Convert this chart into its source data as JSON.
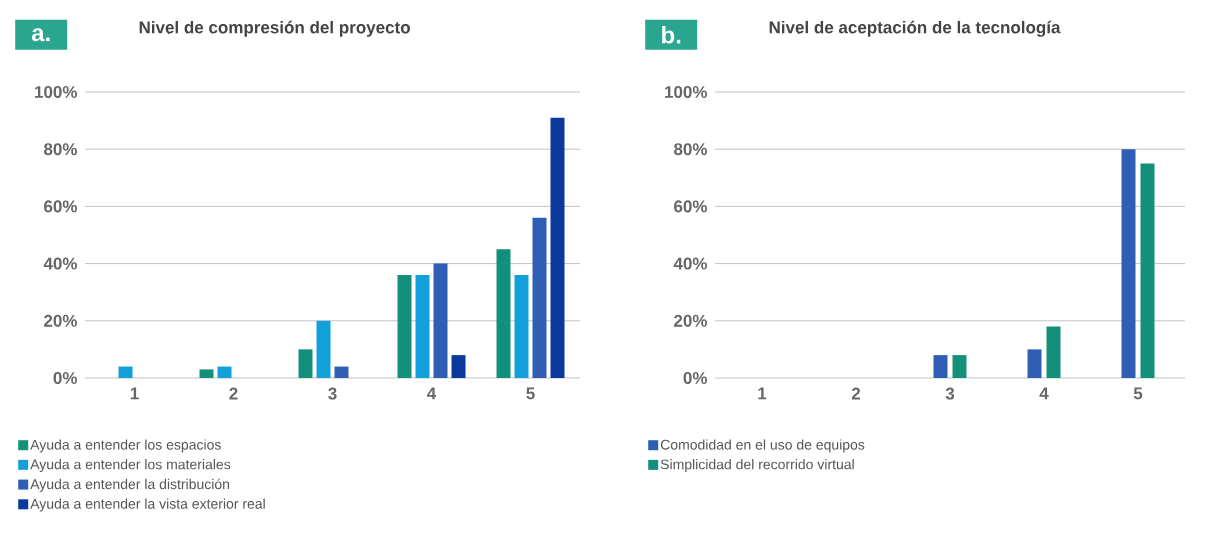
{
  "chart_data": [
    {
      "type": "bar",
      "title": "Nivel de compresión del proyecto",
      "annotations": [
        "a."
      ],
      "categories": [
        "1",
        "2",
        "3",
        "4",
        "5"
      ],
      "series": [
        {
          "name": "Ayuda a entender los espacios",
          "color": "#12907a",
          "values": [
            0,
            3,
            10,
            36,
            45
          ]
        },
        {
          "name": "Ayuda a entender los materiales",
          "color": "#139fd9",
          "values": [
            4,
            4,
            20,
            36,
            36
          ]
        },
        {
          "name": "Ayuda a entender la distribución",
          "color": "#2f5fb5",
          "values": [
            0,
            0,
            4,
            40,
            56
          ]
        },
        {
          "name": "Ayuda a entender la vista exterior real",
          "color": "#0b3a9c",
          "values": [
            0,
            0,
            0,
            8,
            91
          ]
        }
      ],
      "ylim": [
        0,
        100
      ],
      "yticks": [
        {
          "value": 0,
          "label": "0%"
        },
        {
          "value": 20,
          "label": "20%"
        },
        {
          "value": 40,
          "label": "40%"
        },
        {
          "value": 60,
          "label": "60%"
        },
        {
          "value": 80,
          "label": "80%"
        },
        {
          "value": 100,
          "label": "100%"
        }
      ],
      "grid": "y",
      "legend": "bottom"
    },
    {
      "type": "bar",
      "title": "Nivel de aceptación de la tecnología",
      "annotations": [
        "b."
      ],
      "categories": [
        "1",
        "2",
        "3",
        "4",
        "5"
      ],
      "series": [
        {
          "name": "Comodidad en el uso de equipos",
          "color": "#2f5fb5",
          "values": [
            0,
            0,
            8,
            10,
            80
          ]
        },
        {
          "name": "Simplicidad del recorrido virtual",
          "color": "#12907a",
          "values": [
            0,
            0,
            8,
            18,
            75
          ]
        }
      ],
      "ylim": [
        0,
        100
      ],
      "yticks": [
        {
          "value": 0,
          "label": "0%"
        },
        {
          "value": 20,
          "label": "20%"
        },
        {
          "value": 40,
          "label": "40%"
        },
        {
          "value": 60,
          "label": "60%"
        },
        {
          "value": 80,
          "label": "80%"
        },
        {
          "value": 100,
          "label": "100%"
        }
      ],
      "grid": "y",
      "legend": "bottom"
    }
  ]
}
